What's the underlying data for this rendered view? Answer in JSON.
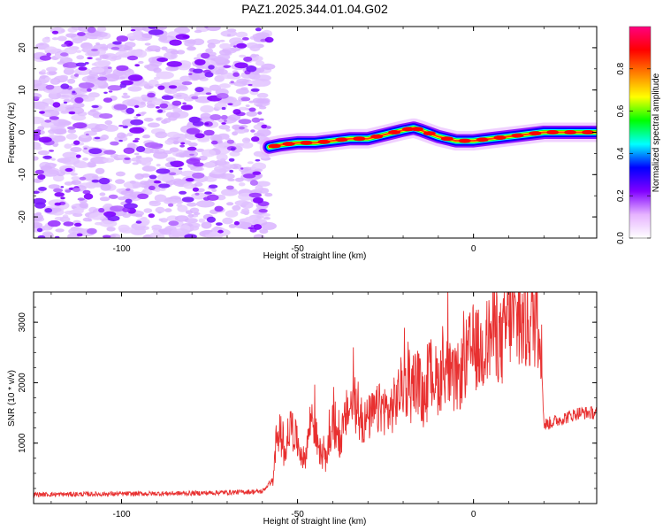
{
  "title": "PAZ1.2025.344.01.04.G02",
  "chart_data": [
    {
      "type": "heatmap",
      "name": "spectrogram",
      "xlabel": "Height of straight line (km)",
      "ylabel": "Frequency (Hz)",
      "xlim": [
        -125,
        35
      ],
      "ylim": [
        -25,
        25
      ],
      "xticks": [
        -100,
        -50,
        0
      ],
      "yticks": [
        -20,
        -10,
        0,
        10,
        20
      ],
      "noise_region_x": [
        -125,
        -58
      ],
      "signal_track": {
        "x": [
          -58,
          -55,
          -50,
          -45,
          -40,
          -35,
          -30,
          -25,
          -20,
          -17,
          -15,
          -10,
          -5,
          0,
          5,
          10,
          15,
          20,
          25,
          30,
          35
        ],
        "y": [
          -3.5,
          -3,
          -2.5,
          -2.5,
          -2,
          -1.5,
          -1.5,
          -0.5,
          0.5,
          1,
          0.5,
          -1,
          -2,
          -2,
          -1.5,
          -1,
          -0.5,
          0,
          0,
          0,
          0
        ]
      },
      "colorbar": {
        "label": "Normalized spectral amplitude",
        "range": [
          0,
          1
        ],
        "ticks": [
          0.0,
          0.2,
          0.4,
          0.6,
          0.8
        ],
        "colors": [
          "#ffffff",
          "#e6b3ff",
          "#8000ff",
          "#0000ff",
          "#00ffff",
          "#00ff00",
          "#ffff00",
          "#ff8000",
          "#ff0000",
          "#ff0080"
        ]
      }
    },
    {
      "type": "line",
      "name": "snr",
      "xlabel": "Height of straight line (km)",
      "ylabel": "SNR (10 * v/v)",
      "xlim": [
        -125,
        35
      ],
      "ylim": [
        0,
        3500
      ],
      "xticks": [
        -100,
        -50,
        0
      ],
      "yticks": [
        1000,
        2000,
        3000
      ],
      "series": [
        {
          "name": "SNR",
          "color": "#e83030",
          "x": [
            -125,
            -100,
            -80,
            -60,
            -57,
            -56,
            -54,
            -52,
            -50,
            -48,
            -46,
            -44,
            -42,
            -40,
            -38,
            -36,
            -34,
            -32,
            -30,
            -28,
            -26,
            -24,
            -22,
            -20,
            -18,
            -16,
            -14,
            -12,
            -10,
            -8,
            -6,
            -4,
            -2,
            0,
            2,
            4,
            6,
            8,
            10,
            12,
            14,
            16,
            18,
            19,
            20,
            25,
            30,
            35
          ],
          "y": [
            150,
            160,
            170,
            200,
            400,
            1100,
            800,
            1300,
            1000,
            700,
            1500,
            900,
            700,
            1300,
            1000,
            1500,
            1700,
            1300,
            1400,
            1500,
            1600,
            1500,
            1700,
            2000,
            1800,
            2100,
            1600,
            2200,
            2000,
            2300,
            2000,
            2100,
            2400,
            2600,
            2500,
            2700,
            2900,
            2600,
            3100,
            3000,
            2900,
            3000,
            3100,
            3000,
            1300,
            1400,
            1500,
            1500
          ]
        }
      ]
    }
  ]
}
